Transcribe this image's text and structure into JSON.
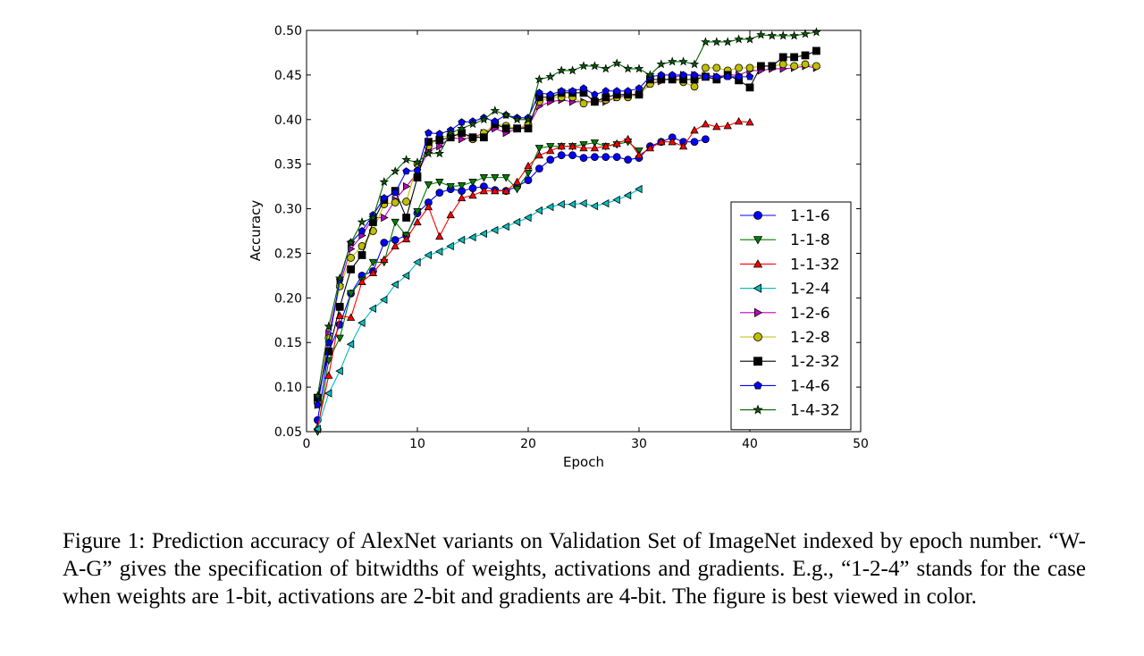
{
  "chart_data": {
    "type": "line",
    "xlabel": "Epoch",
    "ylabel": "Accuracy",
    "xlim": [
      0,
      50
    ],
    "ylim": [
      0.05,
      0.5
    ],
    "xticks": [
      "0",
      "10",
      "20",
      "30",
      "40",
      "50"
    ],
    "yticks": [
      "0.05",
      "0.10",
      "0.15",
      "0.20",
      "0.25",
      "0.30",
      "0.35",
      "0.40",
      "0.45",
      "0.50"
    ],
    "grid": false,
    "legend_position": "lower-right",
    "series": [
      {
        "name": "1-1-6",
        "color": "#0000ff",
        "marker": "circle",
        "x": [
          1,
          2,
          3,
          4,
          5,
          6,
          7,
          8,
          9,
          10,
          11,
          12,
          13,
          14,
          15,
          16,
          17,
          18,
          19,
          20,
          21,
          22,
          23,
          24,
          25,
          26,
          27,
          28,
          29,
          30,
          31,
          32,
          33,
          34,
          35,
          36
        ],
        "y": [
          0.063,
          0.14,
          0.17,
          0.205,
          0.225,
          0.23,
          0.262,
          0.265,
          0.27,
          0.295,
          0.307,
          0.318,
          0.322,
          0.32,
          0.323,
          0.325,
          0.321,
          0.32,
          0.325,
          0.332,
          0.345,
          0.355,
          0.36,
          0.36,
          0.357,
          0.358,
          0.358,
          0.358,
          0.355,
          0.357,
          0.37,
          0.375,
          0.38,
          0.375,
          0.375,
          0.378
        ]
      },
      {
        "name": "1-1-8",
        "color": "#007f00",
        "marker": "triangle-down",
        "x": [
          1,
          2,
          3,
          4,
          5,
          6,
          7,
          8,
          9,
          10,
          11,
          12,
          13,
          14,
          15,
          16,
          17,
          18,
          19,
          20,
          21,
          22,
          23,
          24,
          25,
          26,
          27,
          28,
          29,
          30
        ],
        "y": [
          0.05,
          0.13,
          0.155,
          0.205,
          0.22,
          0.24,
          0.24,
          0.285,
          0.27,
          0.297,
          0.327,
          0.33,
          0.325,
          0.326,
          0.33,
          0.335,
          0.335,
          0.335,
          0.322,
          0.34,
          0.368,
          0.37,
          0.37,
          0.37,
          0.372,
          0.374,
          0.37,
          0.372,
          0.375,
          0.365
        ]
      },
      {
        "name": "1-1-32",
        "color": "#ff0000",
        "marker": "triangle-up",
        "x": [
          1,
          2,
          3,
          4,
          5,
          6,
          7,
          8,
          9,
          10,
          11,
          12,
          13,
          14,
          15,
          16,
          17,
          18,
          19,
          20,
          21,
          22,
          23,
          24,
          25,
          26,
          27,
          28,
          29,
          30,
          31,
          32,
          33,
          34,
          35,
          36,
          37,
          38,
          39,
          40
        ],
        "y": [
          0.055,
          0.113,
          0.18,
          0.178,
          0.218,
          0.228,
          0.243,
          0.258,
          0.266,
          0.285,
          0.302,
          0.269,
          0.293,
          0.312,
          0.315,
          0.32,
          0.32,
          0.32,
          0.33,
          0.348,
          0.36,
          0.365,
          0.37,
          0.37,
          0.368,
          0.368,
          0.37,
          0.373,
          0.378,
          0.36,
          0.368,
          0.375,
          0.375,
          0.37,
          0.388,
          0.395,
          0.392,
          0.393,
          0.398,
          0.397
        ]
      },
      {
        "name": "1-2-4",
        "color": "#00bfbf",
        "marker": "triangle-left",
        "x": [
          1,
          2,
          3,
          4,
          5,
          6,
          7,
          8,
          9,
          10,
          11,
          12,
          13,
          14,
          15,
          16,
          17,
          18,
          19,
          20,
          21,
          22,
          23,
          24,
          25,
          26,
          27,
          28,
          29,
          30
        ],
        "y": [
          0.053,
          0.093,
          0.118,
          0.148,
          0.172,
          0.188,
          0.198,
          0.215,
          0.225,
          0.24,
          0.248,
          0.252,
          0.258,
          0.265,
          0.268,
          0.272,
          0.276,
          0.28,
          0.285,
          0.29,
          0.298,
          0.302,
          0.305,
          0.305,
          0.306,
          0.303,
          0.306,
          0.31,
          0.315,
          0.322
        ]
      },
      {
        "name": "1-2-6",
        "color": "#bf00bf",
        "marker": "triangle-right",
        "x": [
          1,
          2,
          3,
          4,
          5,
          6,
          7,
          8,
          9,
          10,
          11,
          12,
          13,
          14,
          15,
          16,
          17,
          18,
          19,
          20,
          21,
          22,
          23,
          24,
          25,
          26,
          27,
          28,
          29,
          30,
          31,
          32,
          33,
          34,
          35,
          36,
          37,
          38,
          39,
          40,
          41,
          42,
          43,
          44,
          45,
          46
        ],
        "y": [
          0.08,
          0.16,
          0.215,
          0.255,
          0.27,
          0.29,
          0.29,
          0.31,
          0.325,
          0.34,
          0.365,
          0.37,
          0.38,
          0.378,
          0.38,
          0.385,
          0.39,
          0.385,
          0.39,
          0.392,
          0.415,
          0.42,
          0.422,
          0.42,
          0.42,
          0.42,
          0.42,
          0.425,
          0.428,
          0.428,
          0.44,
          0.443,
          0.447,
          0.45,
          0.45,
          0.45,
          0.448,
          0.45,
          0.45,
          0.455,
          0.455,
          0.457,
          0.457,
          0.458,
          0.46,
          0.458
        ]
      },
      {
        "name": "1-2-8",
        "color": "#bfbf00",
        "marker": "circle",
        "x": [
          1,
          2,
          3,
          4,
          5,
          6,
          7,
          8,
          9,
          10,
          11,
          12,
          13,
          14,
          15,
          16,
          17,
          18,
          19,
          20,
          21,
          22,
          23,
          24,
          25,
          26,
          27,
          28,
          29,
          30,
          31,
          32,
          33,
          34,
          35,
          36,
          37,
          38,
          39,
          40,
          41,
          42,
          43,
          44,
          45,
          46
        ],
        "y": [
          0.083,
          0.155,
          0.213,
          0.245,
          0.258,
          0.275,
          0.305,
          0.307,
          0.308,
          0.35,
          0.37,
          0.38,
          0.382,
          0.385,
          0.378,
          0.385,
          0.395,
          0.393,
          0.39,
          0.395,
          0.42,
          0.425,
          0.425,
          0.425,
          0.418,
          0.42,
          0.422,
          0.425,
          0.425,
          0.428,
          0.44,
          0.445,
          0.445,
          0.442,
          0.437,
          0.458,
          0.458,
          0.455,
          0.458,
          0.458,
          0.46,
          0.46,
          0.462,
          0.46,
          0.462,
          0.46
        ]
      },
      {
        "name": "1-2-32",
        "color": "#000000",
        "marker": "square",
        "x": [
          1,
          2,
          3,
          4,
          5,
          6,
          7,
          8,
          9,
          10,
          11,
          12,
          13,
          14,
          15,
          16,
          17,
          18,
          19,
          20,
          21,
          22,
          23,
          24,
          25,
          26,
          27,
          28,
          29,
          30,
          31,
          32,
          33,
          34,
          35,
          36,
          37,
          38,
          39,
          40,
          41,
          42,
          43,
          44,
          45,
          46
        ],
        "y": [
          0.088,
          0.14,
          0.19,
          0.232,
          0.248,
          0.285,
          0.31,
          0.32,
          0.29,
          0.335,
          0.375,
          0.377,
          0.38,
          0.385,
          0.38,
          0.38,
          0.395,
          0.39,
          0.39,
          0.39,
          0.425,
          0.425,
          0.43,
          0.43,
          0.43,
          0.42,
          0.425,
          0.428,
          0.428,
          0.428,
          0.445,
          0.445,
          0.445,
          0.445,
          0.445,
          0.448,
          0.445,
          0.45,
          0.444,
          0.436,
          0.46,
          0.46,
          0.47,
          0.47,
          0.472,
          0.477
        ]
      },
      {
        "name": "1-4-6",
        "color": "#0000ff",
        "marker": "pentagon",
        "x": [
          1,
          2,
          3,
          4,
          5,
          6,
          7,
          8,
          9,
          10,
          11,
          12,
          13,
          14,
          15,
          16,
          17,
          18,
          19,
          20,
          21,
          22,
          23,
          24,
          25,
          26,
          27,
          28,
          29,
          30,
          31,
          32,
          33,
          34,
          35,
          36,
          37,
          38,
          39,
          40
        ],
        "y": [
          0.08,
          0.15,
          0.22,
          0.262,
          0.275,
          0.293,
          0.312,
          0.318,
          0.342,
          0.343,
          0.385,
          0.384,
          0.388,
          0.397,
          0.398,
          0.402,
          0.398,
          0.405,
          0.402,
          0.402,
          0.43,
          0.428,
          0.432,
          0.432,
          0.435,
          0.428,
          0.432,
          0.432,
          0.432,
          0.435,
          0.448,
          0.45,
          0.45,
          0.45,
          0.45,
          0.448,
          0.448,
          0.448,
          0.448,
          0.448
        ]
      },
      {
        "name": "1-4-32",
        "color": "#006400",
        "marker": "star",
        "x": [
          1,
          2,
          3,
          4,
          5,
          6,
          7,
          8,
          9,
          10,
          11,
          12,
          13,
          14,
          15,
          16,
          17,
          18,
          19,
          20,
          21,
          22,
          23,
          24,
          25,
          26,
          27,
          28,
          29,
          30,
          31,
          32,
          33,
          34,
          35,
          36,
          37,
          38,
          39,
          40,
          41,
          42,
          43,
          44,
          45,
          46
        ],
        "y": [
          0.09,
          0.168,
          0.222,
          0.262,
          0.285,
          0.29,
          0.33,
          0.342,
          0.355,
          0.352,
          0.362,
          0.362,
          0.385,
          0.39,
          0.395,
          0.4,
          0.41,
          0.405,
          0.4,
          0.4,
          0.445,
          0.448,
          0.455,
          0.455,
          0.46,
          0.46,
          0.457,
          0.463,
          0.457,
          0.457,
          0.45,
          0.462,
          0.465,
          0.465,
          0.462,
          0.487,
          0.487,
          0.487,
          0.49,
          0.49,
          0.495,
          0.494,
          0.494,
          0.494,
          0.496,
          0.498
        ]
      }
    ]
  },
  "caption": {
    "text": "Figure 1: Prediction accuracy of AlexNet variants on Validation Set of ImageNet indexed by epoch number. “W-A-G” gives the specification of bitwidths of weights, activations and gradients. E.g., “1-2-4” stands for the case when weights are 1-bit, activations are 2-bit and gradients are 4-bit. The figure is best viewed in color."
  }
}
